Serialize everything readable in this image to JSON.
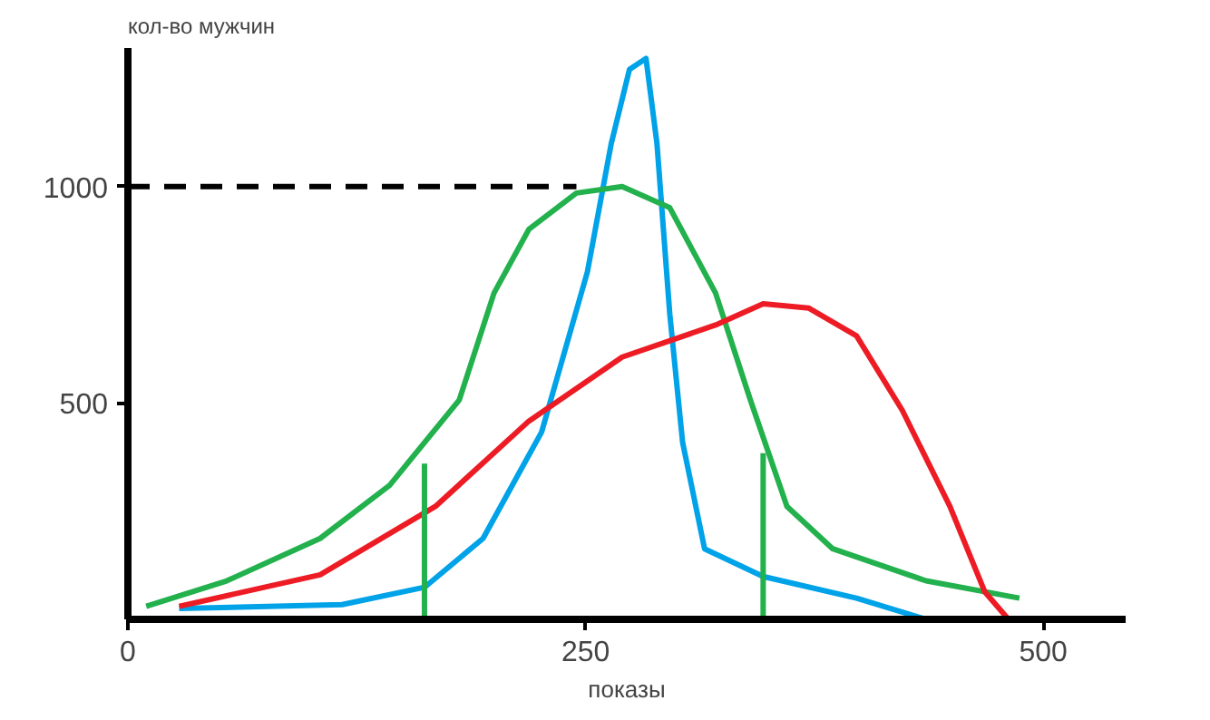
{
  "chart_data": {
    "type": "line",
    "ylabel": "кол-во мужчин",
    "xlabel": "показы",
    "xlim": [
      0,
      545
    ],
    "ylim": [
      0,
      1320
    ],
    "xticks": [
      0,
      250,
      500
    ],
    "yticks": [
      500,
      1000
    ],
    "grid": false,
    "line_style": "solid",
    "series": [
      {
        "color": "#00a2e8",
        "x": [
          28,
          117,
          162,
          194,
          226,
          251,
          264,
          274,
          283,
          289,
          296,
          303,
          315,
          347,
          398,
          436
        ],
        "values": [
          25,
          34,
          74,
          187,
          433,
          803,
          1099,
          1271,
          1296,
          1099,
          705,
          409,
          163,
          99,
          49,
          0
        ]
      },
      {
        "color": "#22b14c",
        "x": [
          10,
          54,
          105,
          143,
          181,
          200,
          219,
          245,
          270,
          296,
          321,
          340,
          360,
          385,
          436,
          487
        ],
        "values": [
          30,
          89,
          187,
          310,
          507,
          754,
          901,
          985,
          1000,
          951,
          754,
          507,
          261,
          163,
          89,
          49
        ]
      },
      {
        "color": "#ed1c24",
        "x": [
          28,
          105,
          168,
          219,
          270,
          321,
          347,
          372,
          398,
          423,
          449,
          468,
          481
        ],
        "values": [
          30,
          103,
          261,
          458,
          606,
          680,
          729,
          719,
          655,
          483,
          261,
          64,
          0
        ]
      },
      {
        "color": "#22b14c",
        "x": [
          162,
          162
        ],
        "values": [
          0,
          360
        ]
      },
      {
        "color": "#22b14c",
        "x": [
          347,
          347
        ],
        "values": [
          0,
          384
        ]
      },
      {
        "color": "#000000",
        "line_style": "dashed",
        "x": [
          0,
          245
        ],
        "values": [
          1000,
          1000
        ]
      }
    ]
  }
}
